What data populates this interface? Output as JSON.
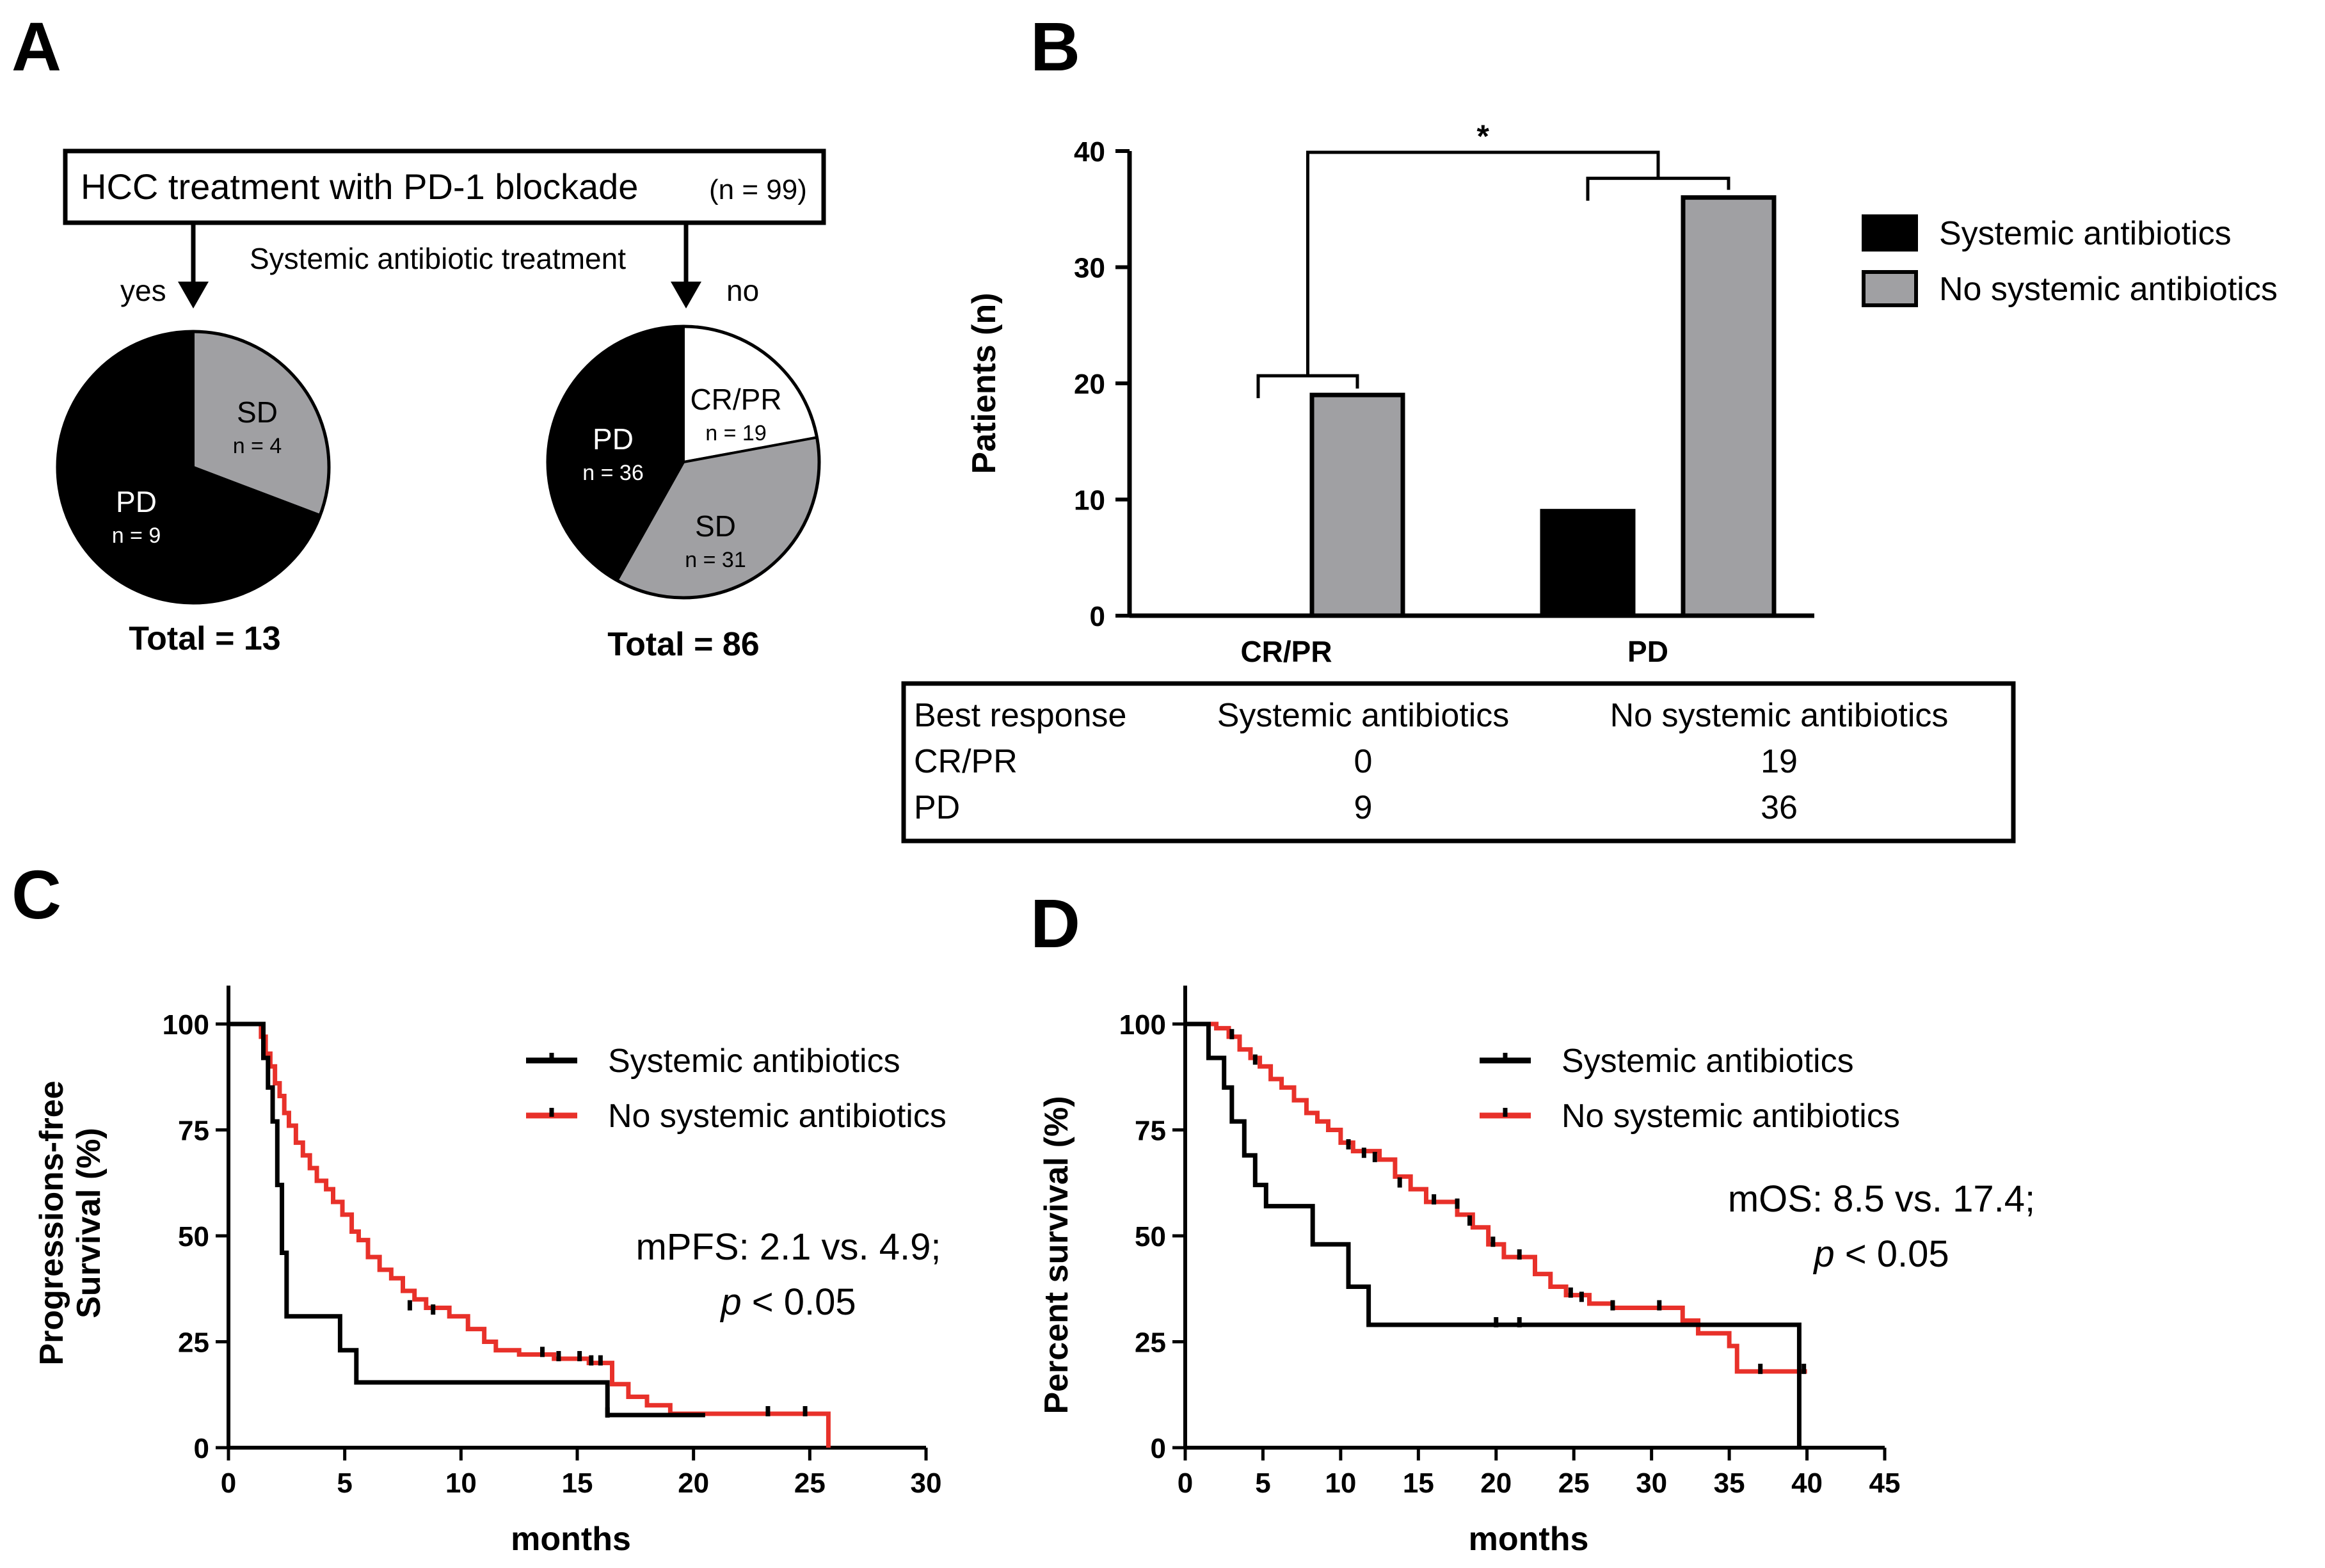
{
  "panels": {
    "a": "A",
    "b": "B",
    "c": "C",
    "d": "D"
  },
  "colors": {
    "black": "#000000",
    "gray": "#a0a0a3",
    "red": "#e8312a",
    "white": "#ffffff"
  },
  "flow": {
    "box_title": "HCC treatment with PD-1 blockade",
    "box_n": "(n = 99)",
    "branch_label": "Systemic antibiotic treatment",
    "yes": "yes",
    "no": "no"
  },
  "chart_data": [
    {
      "id": "pie_antibiotics",
      "type": "pie",
      "slices": [
        {
          "label": "SD",
          "n_label": "n = 4",
          "value": 4,
          "color": "#a0a0a3"
        },
        {
          "label": "PD",
          "n_label": "n = 9",
          "value": 9,
          "color": "#000000"
        }
      ],
      "total_label": "Total = 13"
    },
    {
      "id": "pie_no_antibiotics",
      "type": "pie",
      "slices": [
        {
          "label": "CR/PR",
          "n_label": "n = 19",
          "value": 19,
          "color": "#ffffff"
        },
        {
          "label": "SD",
          "n_label": "n = 31",
          "value": 31,
          "color": "#a0a0a3"
        },
        {
          "label": "PD",
          "n_label": "n = 36",
          "value": 36,
          "color": "#000000"
        }
      ],
      "total_label": "Total = 86"
    },
    {
      "id": "bar_best_response",
      "type": "bar",
      "categories": [
        "CR/PR",
        "PD"
      ],
      "series": [
        {
          "name": "Systemic antibiotics",
          "values": [
            0,
            9
          ],
          "color": "#000000"
        },
        {
          "name": "No systemic antibiotics",
          "values": [
            19,
            36
          ],
          "color": "#a0a0a3"
        }
      ],
      "ylabel": "Patients (n)",
      "ylim": [
        0,
        40
      ],
      "yticks": [
        "0",
        "10",
        "20",
        "30",
        "40"
      ],
      "significance": "*",
      "legend": "right"
    },
    {
      "id": "km_pfs",
      "type": "line",
      "ylabel": "Progressions-free Survival (%)",
      "xlabel": "months",
      "xlim": [
        0,
        30
      ],
      "ylim": [
        0,
        100
      ],
      "xticks": [
        "0",
        "5",
        "10",
        "15",
        "20",
        "25",
        "30"
      ],
      "yticks": [
        "0",
        "25",
        "50",
        "75",
        "100"
      ],
      "annotation": {
        "line1": "mPFS: 2.1 vs. 4.9;",
        "p_italic": "p",
        "p_rest": " < 0.05"
      },
      "legend": "top-right",
      "series": [
        {
          "name": "Systemic antibiotics",
          "color": "#000000",
          "steps": [
            [
              0,
              100
            ],
            [
              1.5,
              92
            ],
            [
              1.7,
              85
            ],
            [
              1.9,
              77
            ],
            [
              2.1,
              62
            ],
            [
              2.3,
              46
            ],
            [
              2.5,
              31
            ],
            [
              4.8,
              23
            ],
            [
              5.5,
              15.4
            ],
            [
              16.3,
              7.7
            ],
            [
              20.5,
              7.7
            ]
          ],
          "censors": [
            [
              16.3,
              7.7
            ]
          ]
        },
        {
          "name": "No systemic antibiotics",
          "color": "#e8312a",
          "steps": [
            [
              0,
              100
            ],
            [
              1.4,
              97
            ],
            [
              1.6,
              93
            ],
            [
              1.8,
              90
            ],
            [
              2.0,
              86
            ],
            [
              2.2,
              83
            ],
            [
              2.4,
              79
            ],
            [
              2.6,
              76
            ],
            [
              2.9,
              72
            ],
            [
              3.2,
              69
            ],
            [
              3.5,
              66
            ],
            [
              3.8,
              63
            ],
            [
              4.2,
              61
            ],
            [
              4.5,
              58
            ],
            [
              4.9,
              55
            ],
            [
              5.3,
              51
            ],
            [
              5.6,
              49
            ],
            [
              6.0,
              45
            ],
            [
              6.5,
              42
            ],
            [
              7.0,
              40
            ],
            [
              7.5,
              37
            ],
            [
              8.0,
              35
            ],
            [
              8.5,
              33
            ],
            [
              9.5,
              31
            ],
            [
              10.3,
              28
            ],
            [
              11.0,
              25
            ],
            [
              11.5,
              23
            ],
            [
              12.5,
              22
            ],
            [
              14.0,
              21
            ],
            [
              15.5,
              20
            ],
            [
              16.5,
              15
            ],
            [
              17.2,
              12
            ],
            [
              18.0,
              10
            ],
            [
              19.0,
              8
            ],
            [
              20.5,
              8
            ],
            [
              25.8,
              8
            ],
            [
              25.8,
              0
            ]
          ],
          "censors": [
            [
              7.8,
              33
            ],
            [
              8.8,
              32
            ],
            [
              13.5,
              22
            ],
            [
              14.2,
              21
            ],
            [
              15.1,
              21
            ],
            [
              15.6,
              20
            ],
            [
              16.0,
              20
            ],
            [
              23.2,
              8
            ],
            [
              24.8,
              8
            ]
          ]
        }
      ]
    },
    {
      "id": "km_os",
      "type": "line",
      "ylabel": "Percent survival (%)",
      "xlabel": "months",
      "xlim": [
        0,
        45
      ],
      "ylim": [
        0,
        100
      ],
      "xticks": [
        "0",
        "5",
        "10",
        "15",
        "20",
        "25",
        "30",
        "35",
        "40",
        "45"
      ],
      "yticks": [
        "0",
        "25",
        "50",
        "75",
        "100"
      ],
      "annotation": {
        "line1": "mOS: 8.5 vs. 17.4;",
        "p_italic": "p",
        "p_rest": " < 0.05"
      },
      "legend": "top-right",
      "series": [
        {
          "name": "Systemic antibiotics",
          "color": "#000000",
          "steps": [
            [
              0,
              100
            ],
            [
              1.5,
              92
            ],
            [
              2.5,
              85
            ],
            [
              3.0,
              77
            ],
            [
              3.8,
              69
            ],
            [
              4.5,
              62
            ],
            [
              5.2,
              57
            ],
            [
              8.2,
              48
            ],
            [
              10.5,
              38
            ],
            [
              11.8,
              29
            ],
            [
              39.5,
              29
            ],
            [
              39.5,
              0
            ]
          ],
          "censors": [
            [
              20.0,
              29
            ],
            [
              21.5,
              29
            ]
          ]
        },
        {
          "name": "No systemic antibiotics",
          "color": "#e8312a",
          "steps": [
            [
              0,
              100
            ],
            [
              2.0,
              99
            ],
            [
              2.8,
              97
            ],
            [
              3.5,
              94
            ],
            [
              4.2,
              92
            ],
            [
              4.8,
              90
            ],
            [
              5.5,
              87
            ],
            [
              6.2,
              85
            ],
            [
              7.0,
              82
            ],
            [
              7.8,
              79
            ],
            [
              8.5,
              77
            ],
            [
              9.2,
              75
            ],
            [
              10.0,
              72
            ],
            [
              10.8,
              70
            ],
            [
              12.5,
              68
            ],
            [
              13.5,
              64
            ],
            [
              14.5,
              61
            ],
            [
              15.5,
              58
            ],
            [
              17.5,
              55
            ],
            [
              18.5,
              52
            ],
            [
              19.5,
              48
            ],
            [
              20.5,
              45
            ],
            [
              22.5,
              41
            ],
            [
              23.5,
              38
            ],
            [
              24.5,
              36
            ],
            [
              26.0,
              34
            ],
            [
              27.5,
              33
            ],
            [
              32.0,
              30
            ],
            [
              33.0,
              27
            ],
            [
              35.0,
              24
            ],
            [
              35.5,
              18
            ],
            [
              39.5,
              18
            ],
            [
              40.0,
              18
            ]
          ],
          "censors": [
            [
              3.0,
              97
            ],
            [
              4.5,
              91
            ],
            [
              10.5,
              71
            ],
            [
              11.5,
              69
            ],
            [
              12.2,
              68
            ],
            [
              13.8,
              62
            ],
            [
              16.0,
              58
            ],
            [
              17.5,
              57
            ],
            [
              18.3,
              53
            ],
            [
              19.8,
              48
            ],
            [
              21.5,
              45
            ],
            [
              24.8,
              36
            ],
            [
              25.5,
              35
            ],
            [
              27.5,
              33
            ],
            [
              30.5,
              33
            ],
            [
              37.0,
              18
            ],
            [
              39.8,
              18
            ]
          ]
        }
      ]
    }
  ],
  "table": {
    "headers": [
      "Best response",
      "Systemic antibiotics",
      "No systemic antibiotics"
    ],
    "rows": [
      [
        "CR/PR",
        "0",
        "19"
      ],
      [
        "PD",
        "9",
        "36"
      ]
    ]
  }
}
